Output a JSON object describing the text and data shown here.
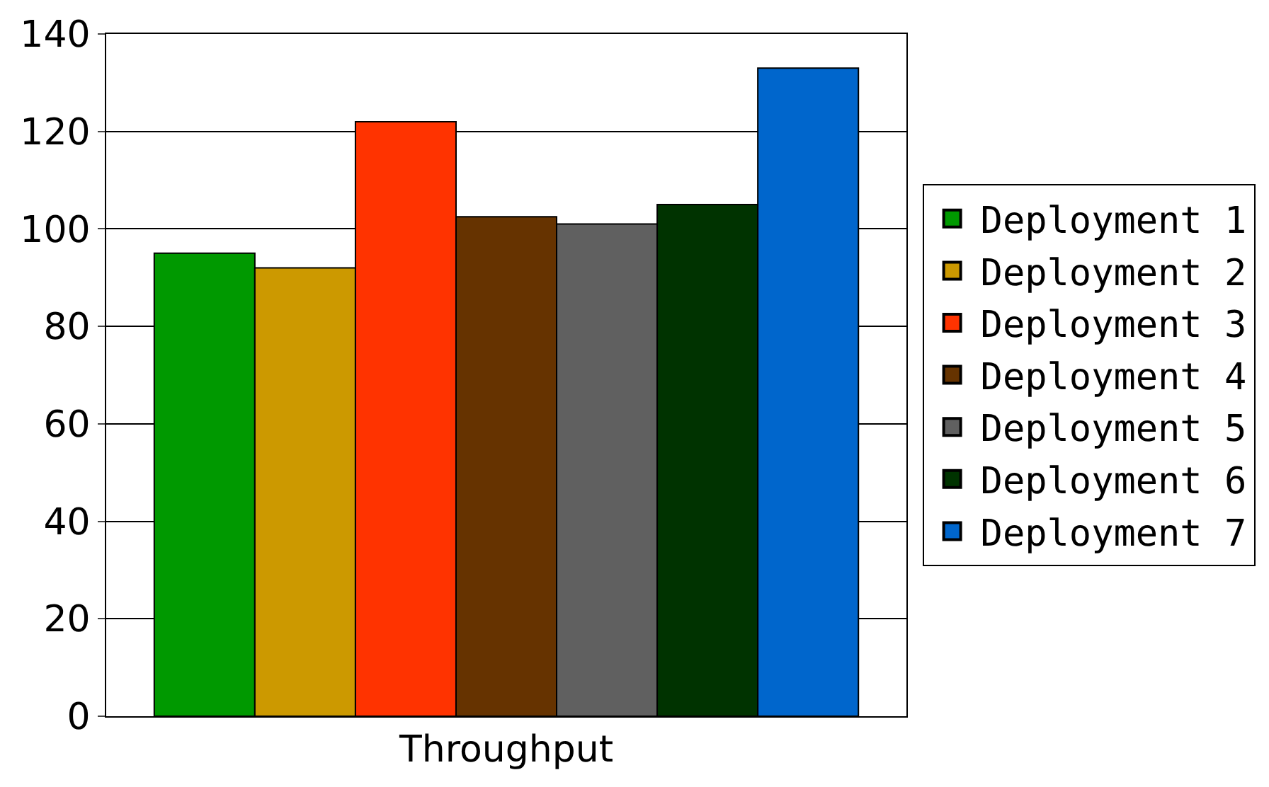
{
  "chart_data": {
    "type": "bar",
    "categories": [
      "Throughput"
    ],
    "series": [
      {
        "name": "Deployment 1",
        "color": "#009900",
        "values": [
          95
        ]
      },
      {
        "name": "Deployment 2",
        "color": "#cc9900",
        "values": [
          92
        ]
      },
      {
        "name": "Deployment 3",
        "color": "#ff3300",
        "values": [
          122
        ]
      },
      {
        "name": "Deployment 4",
        "color": "#663300",
        "values": [
          102.5
        ]
      },
      {
        "name": "Deployment 5",
        "color": "#606060",
        "values": [
          101
        ]
      },
      {
        "name": "Deployment 6",
        "color": "#003300",
        "values": [
          105
        ]
      },
      {
        "name": "Deployment 7",
        "color": "#0066cc",
        "values": [
          133
        ]
      }
    ],
    "ylim": [
      0,
      140
    ],
    "yticks": [
      0,
      20,
      40,
      60,
      80,
      100,
      120,
      140
    ],
    "grid": "y",
    "legend": "right"
  }
}
